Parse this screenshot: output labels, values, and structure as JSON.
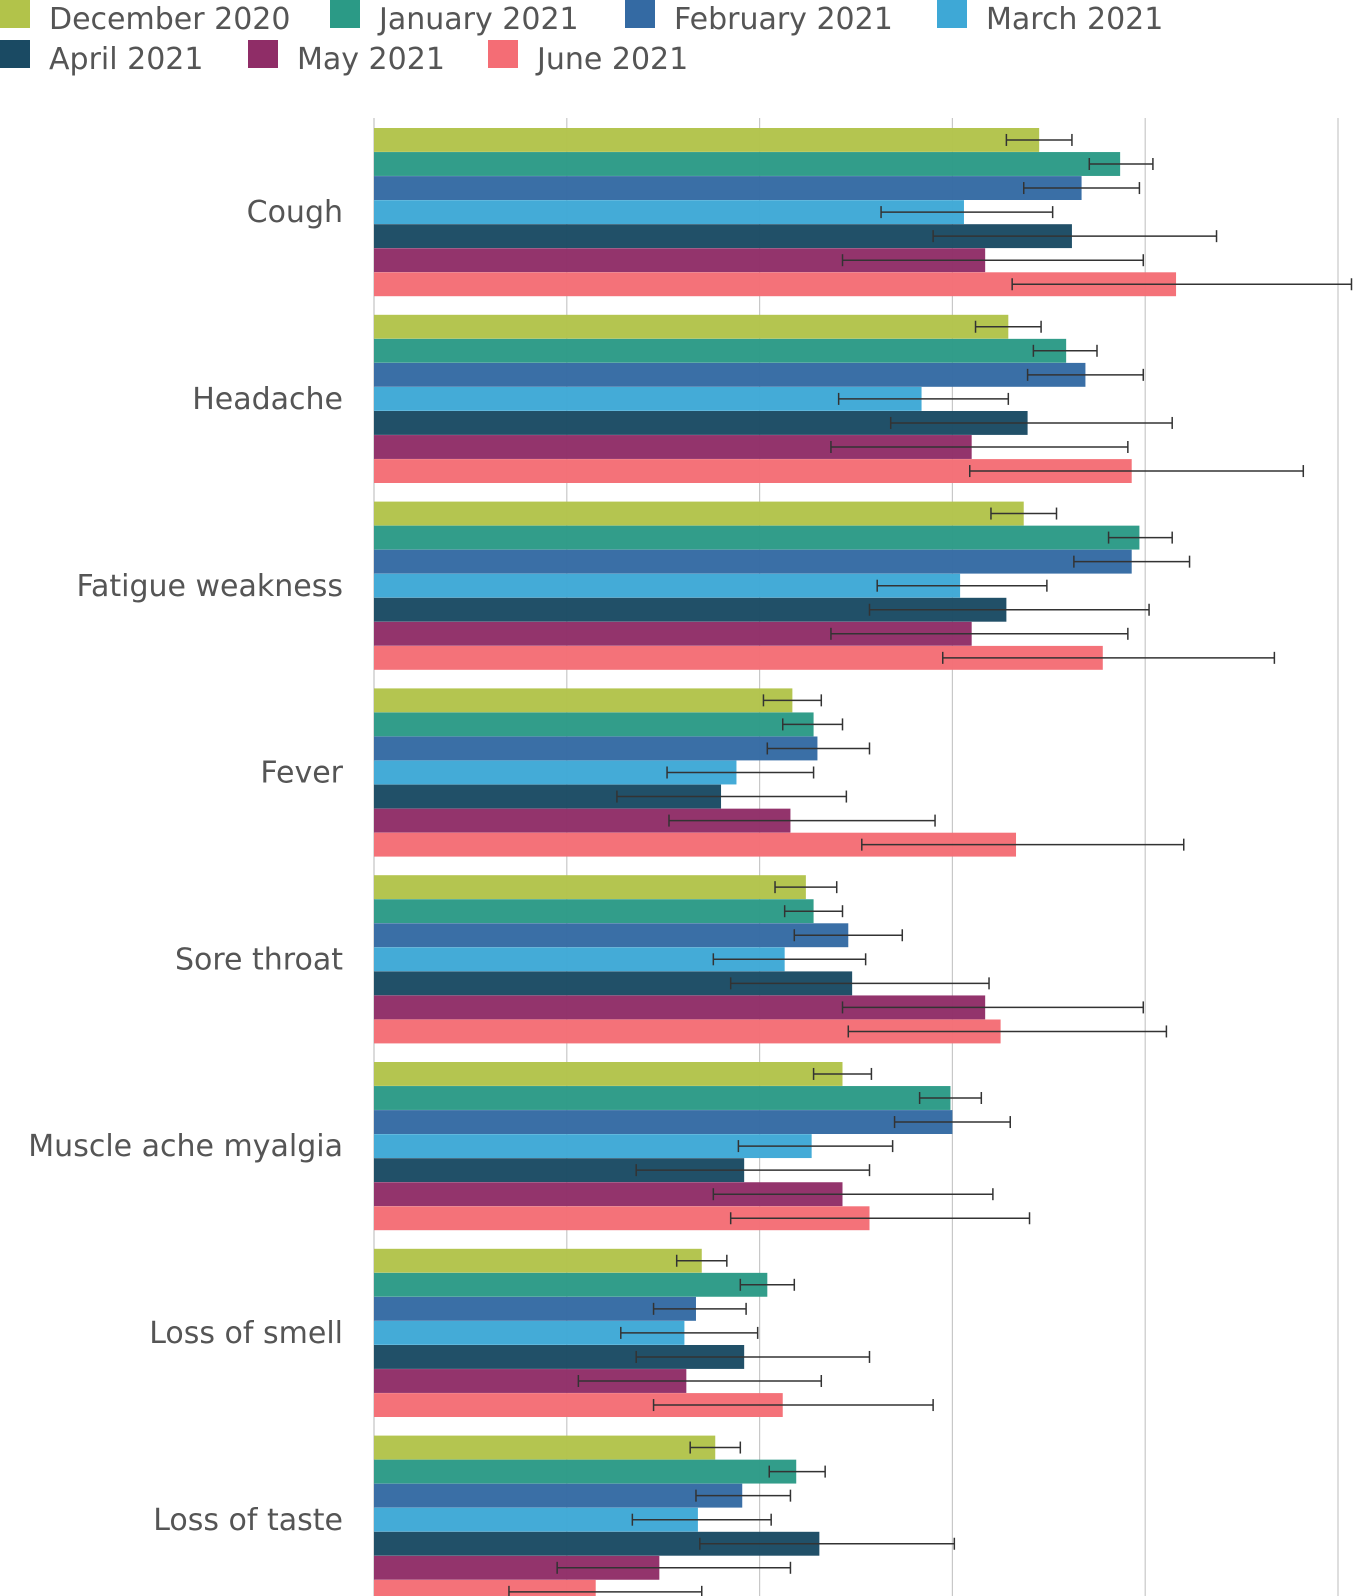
{
  "chart_data": {
    "type": "bar",
    "orientation": "horizontal",
    "title": "",
    "xlabel": "",
    "ylabel": "",
    "xlim": [
      0,
      5
    ],
    "grid": true,
    "legend_position": "top",
    "categories": [
      "Cough",
      "Headache",
      "Fatigue weakness",
      "Fever",
      "Sore throat",
      "Muscle ache myalgia",
      "Loss of smell",
      "Loss of taste"
    ],
    "series": [
      {
        "name": "December 2020",
        "color": "#b2c34a",
        "values": [
          3.45,
          3.29,
          3.37,
          2.17,
          2.24,
          2.43,
          1.7,
          1.77
        ],
        "lower": [
          3.28,
          3.12,
          3.2,
          2.02,
          2.08,
          2.28,
          1.57,
          1.64
        ],
        "upper": [
          3.62,
          3.46,
          3.54,
          2.32,
          2.4,
          2.58,
          1.83,
          1.9
        ]
      },
      {
        "name": "January 2021",
        "color": "#2b9a86",
        "values": [
          3.87,
          3.59,
          3.97,
          2.28,
          2.28,
          2.99,
          2.04,
          2.19
        ],
        "lower": [
          3.71,
          3.42,
          3.81,
          2.12,
          2.13,
          2.83,
          1.9,
          2.05
        ],
        "upper": [
          4.04,
          3.75,
          4.14,
          2.43,
          2.43,
          3.15,
          2.18,
          2.34
        ]
      },
      {
        "name": "February 2021",
        "color": "#346aa3",
        "values": [
          3.67,
          3.69,
          3.93,
          2.3,
          2.46,
          3.0,
          1.67,
          1.91
        ],
        "lower": [
          3.37,
          3.39,
          3.63,
          2.04,
          2.18,
          2.7,
          1.45,
          1.67
        ],
        "upper": [
          3.97,
          3.99,
          4.23,
          2.57,
          2.74,
          3.3,
          1.93,
          2.16
        ]
      },
      {
        "name": "March 2021",
        "color": "#3ea8d6",
        "values": [
          3.06,
          2.84,
          3.04,
          1.88,
          2.13,
          2.27,
          1.61,
          1.68
        ],
        "lower": [
          2.63,
          2.41,
          2.61,
          1.52,
          1.76,
          1.89,
          1.28,
          1.34
        ],
        "upper": [
          3.52,
          3.29,
          3.49,
          2.28,
          2.55,
          2.69,
          1.99,
          2.06
        ]
      },
      {
        "name": "April 2021",
        "color": "#1a4a63",
        "values": [
          3.62,
          3.39,
          3.28,
          1.8,
          2.48,
          1.92,
          1.92,
          2.31
        ],
        "lower": [
          2.9,
          2.68,
          2.57,
          1.26,
          1.85,
          1.36,
          1.36,
          1.69
        ],
        "upper": [
          4.37,
          4.14,
          4.02,
          2.45,
          3.19,
          2.57,
          2.57,
          3.01
        ]
      },
      {
        "name": "May 2021",
        "color": "#8f2d67",
        "values": [
          3.17,
          3.1,
          3.1,
          2.16,
          3.17,
          2.43,
          1.62,
          1.48
        ],
        "lower": [
          2.43,
          2.37,
          2.37,
          1.53,
          2.43,
          1.76,
          1.06,
          0.95
        ],
        "upper": [
          3.99,
          3.91,
          3.91,
          2.91,
          3.99,
          3.21,
          2.32,
          2.16
        ]
      },
      {
        "name": "June 2021",
        "color": "#f46d75",
        "values": [
          4.16,
          3.93,
          3.78,
          3.33,
          3.25,
          2.57,
          2.12,
          1.15
        ],
        "lower": [
          3.31,
          3.09,
          2.95,
          2.53,
          2.46,
          1.85,
          1.45,
          0.7
        ],
        "upper": [
          5.07,
          4.82,
          4.67,
          4.2,
          4.11,
          3.4,
          2.9,
          1.7
        ]
      }
    ]
  }
}
